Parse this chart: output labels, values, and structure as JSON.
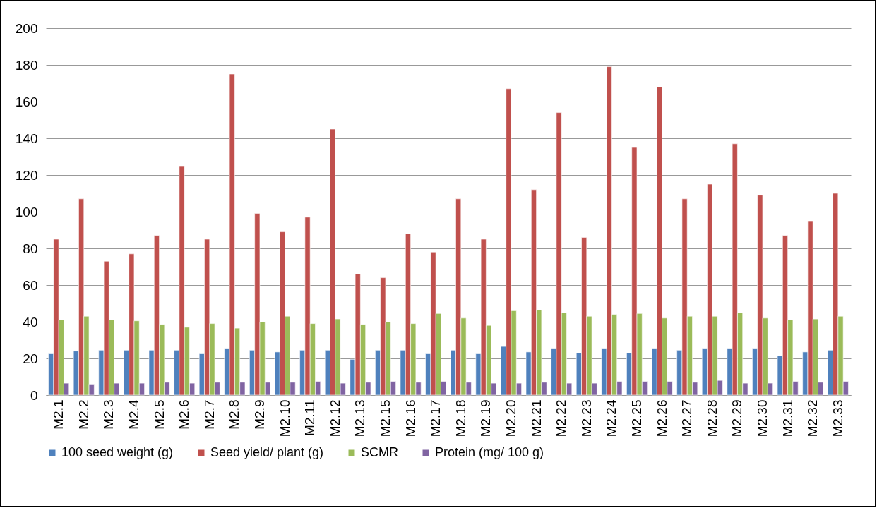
{
  "chart_data": {
    "type": "bar",
    "categories": [
      "M2.1",
      "M2.2",
      "M2.3",
      "M2.4",
      "M2.5",
      "M2.6",
      "M2.7",
      "M2.8",
      "M2.9",
      "M2.10",
      "M2.11",
      "M2.12",
      "M2.13",
      "M2.15",
      "M2.16",
      "M2.17",
      "M2.18",
      "M2.19",
      "M2.20",
      "M2.21",
      "M2.22",
      "M2.23",
      "M2.24",
      "M2.25",
      "M2.26",
      "M2.27",
      "M2.28",
      "M2.29",
      "M2.30",
      "M2.31",
      "M2.32",
      "M2.33"
    ],
    "series": [
      {
        "name": "100 seed weight (g)",
        "color": "#4f81bd",
        "values": [
          22.5,
          24,
          24.5,
          24.5,
          24.5,
          24.5,
          22.5,
          25.5,
          24.5,
          23.5,
          24.5,
          24.5,
          19.5,
          24.5,
          24.5,
          22.5,
          24.5,
          22.5,
          26.5,
          23.5,
          25.5,
          23,
          25.5,
          23,
          25.5,
          24.5,
          25.5,
          25.5,
          25.5,
          21.5,
          23.5,
          24.5
        ]
      },
      {
        "name": "Seed yield/ plant (g)",
        "color": "#c0504d",
        "values": [
          85,
          107,
          73,
          77,
          87,
          125,
          85,
          175,
          99,
          89,
          97,
          145,
          66,
          64,
          88,
          78,
          107,
          85,
          167,
          112,
          154,
          86,
          179,
          135,
          168,
          107,
          115,
          137,
          109,
          87,
          95,
          110
        ]
      },
      {
        "name": "SCMR",
        "color": "#9bbb59",
        "values": [
          41,
          43,
          41,
          40.5,
          38.5,
          37,
          39,
          36.5,
          40,
          43,
          39,
          41.5,
          38.5,
          40,
          39,
          44.5,
          42,
          38,
          46,
          46.5,
          45,
          43,
          44,
          44.5,
          42,
          43,
          43,
          45,
          42,
          41,
          41.5,
          43
        ]
      },
      {
        "name": "Protein (mg/ 100 g)",
        "color": "#8064a2",
        "values": [
          6.5,
          6,
          6.5,
          6.5,
          7,
          6.5,
          7,
          7,
          7,
          7,
          7.5,
          6.5,
          7,
          7.5,
          7,
          7.5,
          7,
          6.5,
          6.5,
          7,
          6.5,
          6.5,
          7.5,
          7.5,
          7.5,
          7,
          8,
          6.5,
          6.5,
          7.5,
          7,
          7.5
        ]
      }
    ],
    "ylim": [
      0,
      200
    ],
    "yticks": [
      0,
      20,
      40,
      60,
      80,
      100,
      120,
      140,
      160,
      180,
      200
    ],
    "grid": "y",
    "legend": "bottom"
  }
}
